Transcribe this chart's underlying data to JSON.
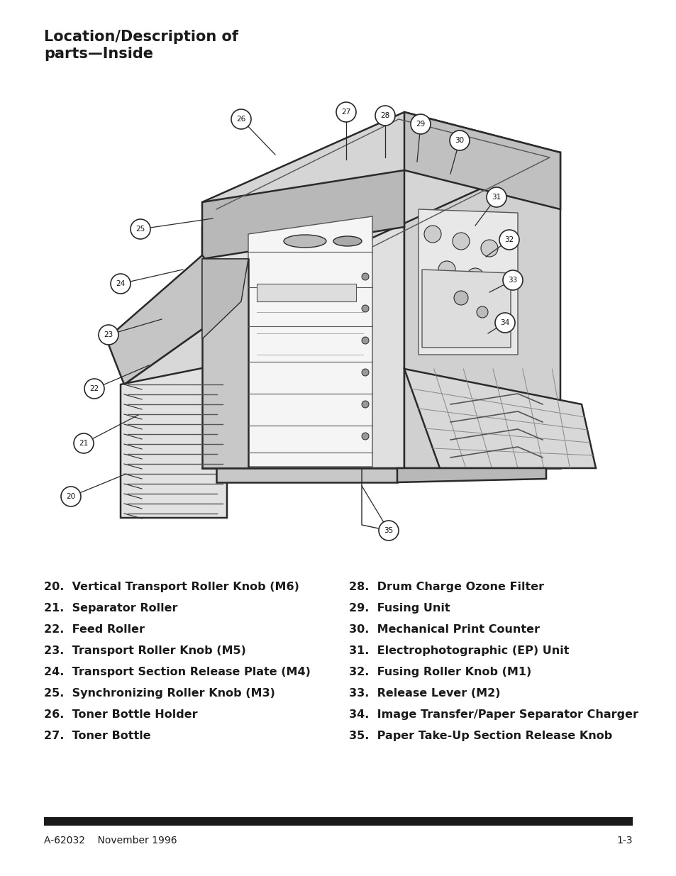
{
  "title_line1": "Location/Description of",
  "title_line2": "parts—Inside",
  "left_items": [
    "20.  Vertical Transport Roller Knob (M6)",
    "21.  Separator Roller",
    "22.  Feed Roller",
    "23.  Transport Roller Knob (M5)",
    "24.  Transport Section Release Plate (M4)",
    "25.  Synchronizing Roller Knob (M3)",
    "26.  Toner Bottle Holder",
    "27.  Toner Bottle"
  ],
  "right_items": [
    "28.  Drum Charge Ozone Filter",
    "29.  Fusing Unit",
    "30.  Mechanical Print Counter",
    "31.  Electrophotographic (EP) Unit",
    "32.  Fusing Roller Knob (M1)",
    "33.  Release Lever (M2)",
    "34.  Image Transfer/Paper Separator Charger",
    "35.  Paper Take-Up Section Release Knob"
  ],
  "footer_left": "A-62032    November 1996",
  "footer_right": "1-3",
  "bg_color": "#ffffff",
  "text_color": "#1a1a1a",
  "footer_bar_color": "#1a1a1a",
  "title_fontsize": 15,
  "list_fontsize": 11.5,
  "footer_fontsize": 10,
  "callouts": [
    [
      20,
      100,
      700,
      178,
      668
    ],
    [
      21,
      118,
      625,
      195,
      585
    ],
    [
      22,
      133,
      548,
      210,
      515
    ],
    [
      23,
      153,
      472,
      228,
      450
    ],
    [
      24,
      170,
      400,
      258,
      380
    ],
    [
      25,
      198,
      323,
      300,
      308
    ],
    [
      26,
      340,
      168,
      388,
      218
    ],
    [
      27,
      488,
      158,
      488,
      225
    ],
    [
      28,
      543,
      163,
      543,
      222
    ],
    [
      29,
      593,
      175,
      588,
      228
    ],
    [
      30,
      648,
      198,
      635,
      245
    ],
    [
      31,
      700,
      278,
      670,
      318
    ],
    [
      32,
      718,
      338,
      685,
      362
    ],
    [
      33,
      723,
      395,
      690,
      412
    ],
    [
      34,
      712,
      455,
      688,
      470
    ],
    [
      35,
      548,
      748,
      510,
      685
    ]
  ]
}
